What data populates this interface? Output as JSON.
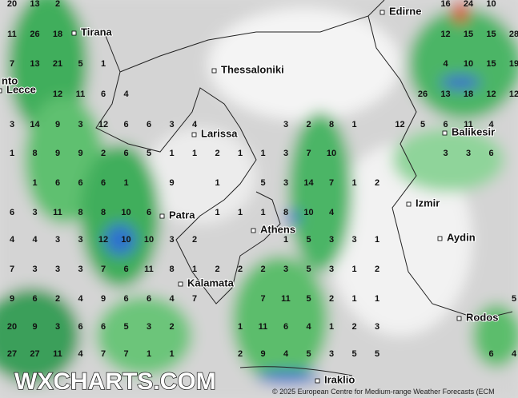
{
  "map": {
    "cities": [
      {
        "label": "Edirne"
      },
      {
        "label": "Tirana"
      },
      {
        "label": "Thessaloniki"
      },
      {
        "label": "nto"
      },
      {
        "label": "Lecce"
      },
      {
        "label": "Larissa"
      },
      {
        "label": "Balikesir"
      },
      {
        "label": "Izmir"
      },
      {
        "label": "Patra"
      },
      {
        "label": "Athens"
      },
      {
        "label": "Aydin"
      },
      {
        "label": "Kalamata"
      },
      {
        "label": "Rodos"
      },
      {
        "label": "Iraklio"
      }
    ],
    "grid_values": [
      [
        20,
        13,
        2,
        null,
        null,
        null,
        null,
        null,
        null,
        null,
        null,
        null,
        null,
        null,
        null,
        null,
        null,
        null,
        null,
        16,
        24,
        10,
        null
      ],
      [
        11,
        26,
        18,
        null,
        null,
        null,
        null,
        null,
        null,
        null,
        null,
        null,
        null,
        null,
        null,
        null,
        null,
        null,
        null,
        12,
        15,
        15,
        28
      ],
      [
        7,
        13,
        21,
        5,
        1,
        null,
        null,
        null,
        null,
        null,
        null,
        null,
        null,
        null,
        null,
        null,
        null,
        null,
        null,
        4,
        10,
        15,
        19
      ],
      [
        null,
        null,
        12,
        11,
        6,
        4,
        null,
        null,
        null,
        null,
        null,
        null,
        null,
        null,
        null,
        null,
        null,
        null,
        26,
        13,
        18,
        12,
        12
      ],
      [
        3,
        14,
        9,
        3,
        12,
        6,
        6,
        3,
        4,
        null,
        null,
        null,
        3,
        2,
        8,
        1,
        null,
        12,
        5,
        6,
        11,
        4,
        null
      ],
      [
        1,
        8,
        9,
        9,
        2,
        6,
        5,
        1,
        1,
        2,
        1,
        1,
        3,
        7,
        10,
        null,
        null,
        null,
        null,
        3,
        3,
        6,
        null
      ],
      [
        null,
        1,
        6,
        6,
        6,
        1,
        null,
        9,
        null,
        1,
        null,
        5,
        3,
        14,
        7,
        1,
        2,
        null,
        null,
        null,
        null,
        null,
        null
      ],
      [
        6,
        3,
        11,
        8,
        8,
        10,
        6,
        null,
        null,
        1,
        1,
        1,
        8,
        10,
        4,
        null,
        null,
        null,
        null,
        null,
        null,
        null,
        null
      ],
      [
        4,
        4,
        3,
        3,
        12,
        10,
        10,
        3,
        2,
        null,
        null,
        null,
        1,
        5,
        3,
        3,
        1,
        null,
        null,
        null,
        null,
        null,
        null
      ],
      [
        7,
        3,
        3,
        3,
        7,
        6,
        11,
        8,
        1,
        2,
        2,
        2,
        3,
        5,
        3,
        1,
        2,
        null,
        null,
        null,
        null,
        null,
        null
      ],
      [
        9,
        6,
        2,
        4,
        9,
        6,
        6,
        4,
        7,
        null,
        null,
        7,
        11,
        5,
        2,
        1,
        1,
        null,
        null,
        null,
        null,
        null,
        5
      ],
      [
        20,
        9,
        3,
        6,
        6,
        5,
        3,
        2,
        null,
        null,
        1,
        11,
        6,
        4,
        1,
        2,
        3,
        null,
        null,
        null,
        null,
        null,
        null
      ],
      [
        27,
        27,
        11,
        4,
        7,
        7,
        1,
        1,
        null,
        null,
        2,
        9,
        4,
        5,
        3,
        5,
        5,
        null,
        null,
        null,
        null,
        6,
        4
      ]
    ],
    "watermark": "WXCHARTS.COM",
    "copyright": "© 2025 European Centre for Medium-range Weather Forecasts (ECM"
  }
}
